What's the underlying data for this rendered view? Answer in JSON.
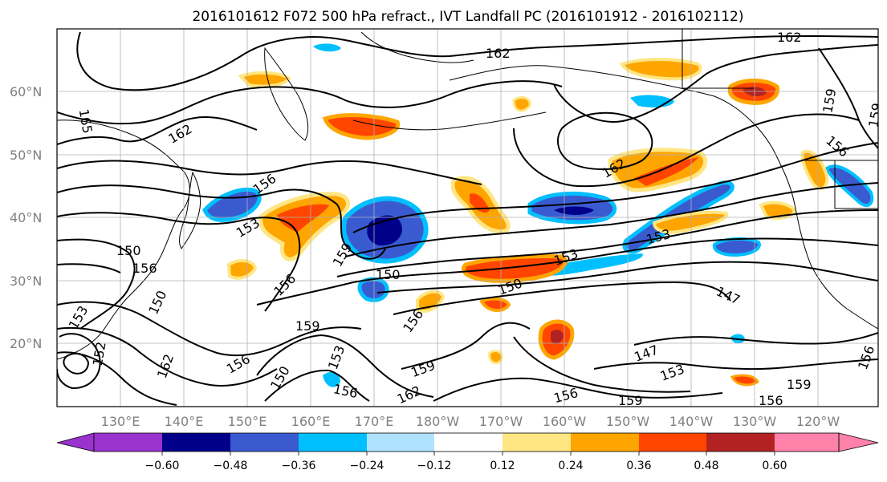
{
  "title": "2016101612 F072 500 hPa refract., IVT Landfall PC (2016101912 - 2016102112)",
  "lat_labels": [
    "60°N",
    "50°N",
    "40°N",
    "30°N",
    "20°N"
  ],
  "lon_labels": [
    "130°E",
    "140°E",
    "150°E",
    "160°E",
    "170°E",
    "180°W",
    "170°W",
    "160°W",
    "150°W",
    "140°W",
    "130°W",
    "120°W"
  ],
  "contour_labels": [
    "162",
    "162",
    "165",
    "162",
    "156",
    "153",
    "150",
    "156",
    "159",
    "156",
    "150",
    "159",
    "150",
    "156",
    "153",
    "159",
    "162",
    "156",
    "156",
    "153",
    "150",
    "150",
    "156",
    "159",
    "153",
    "147",
    "147",
    "153",
    "156",
    "159",
    "156",
    "162",
    "159",
    "159",
    "162",
    "156",
    "153",
    "152"
  ],
  "colorbar": {
    "colors": [
      "#9a32cd",
      "#00008b",
      "#3a5bd0",
      "#00bfff",
      "#b0e2ff",
      "#ffffff",
      "#ffe682",
      "#ffa500",
      "#ff4500",
      "#b22222",
      "#ff82ab"
    ],
    "tick_labels": [
      "−0.60",
      "−0.48",
      "−0.36",
      "−0.24",
      "−0.12",
      "0.12",
      "0.24",
      "0.36",
      "0.48",
      "0.60"
    ]
  }
}
